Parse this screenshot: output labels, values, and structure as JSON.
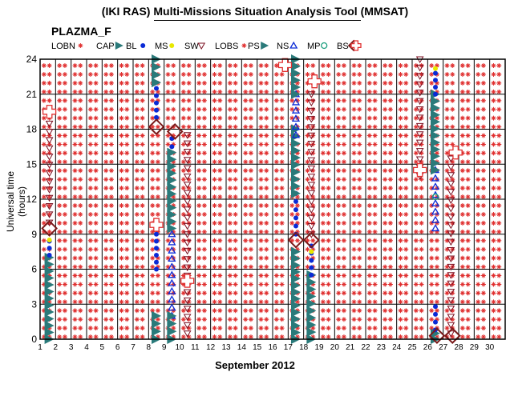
{
  "title": "(IKI RAS) Multi-Missions Situation Analysis Tool (MMSAT)",
  "chart_data": {
    "type": "scatter",
    "subtitle": "PLAZMA_F",
    "xlabel": "September 2012",
    "ylabel": "Universal time (hours)",
    "xlim": [
      1,
      31
    ],
    "ylim": [
      0,
      24
    ],
    "x_ticks": [
      1,
      2,
      3,
      4,
      5,
      6,
      7,
      8,
      9,
      10,
      11,
      12,
      13,
      14,
      15,
      16,
      17,
      18,
      19,
      20,
      21,
      22,
      23,
      24,
      25,
      26,
      27,
      28,
      29,
      30
    ],
    "y_ticks": [
      0,
      3,
      6,
      9,
      12,
      15,
      18,
      21,
      24
    ],
    "grid": true,
    "legend_position": "top",
    "regions": [
      {
        "name": "LOBN",
        "color": "#e03030",
        "marker": "asterisk"
      },
      {
        "name": "CAP",
        "color": "#2a7a7a",
        "marker": "triangle-right"
      },
      {
        "name": "BL",
        "color": "#0a2ad6",
        "marker": "dot"
      },
      {
        "name": "MS",
        "color": "#e8e800",
        "marker": "dot"
      },
      {
        "name": "SW",
        "color": "#7a0f20",
        "marker": "triangle-down-open"
      },
      {
        "name": "LOBS",
        "color": "#e03030",
        "marker": "asterisk"
      },
      {
        "name": "PS",
        "color": "#2a7a7a",
        "marker": "triangle-right"
      },
      {
        "name": "NS",
        "color": "#0a2ad6",
        "marker": "triangle-up-open"
      },
      {
        "name": "MP",
        "color": "#1a9e7e",
        "marker": "circle-open"
      },
      {
        "name": "BS",
        "color": "#7a1a1a",
        "marker": "diamond-open"
      },
      {
        "name": "",
        "color": "#e03030",
        "marker": "cross-open"
      }
    ],
    "segments": [
      {
        "region": "CAP",
        "x": 1.6,
        "y_start": 0,
        "y_end": 7
      },
      {
        "region": "BL",
        "x": 1.6,
        "y_start": 7.2,
        "y_end": 8.4
      },
      {
        "region": "MS",
        "x": 1.6,
        "y_start": 8.5,
        "y_end": 8.7
      },
      {
        "region": "SW",
        "x": 1.6,
        "y_start": 10,
        "y_end": 19.2
      },
      {
        "region": "CAP",
        "x": 8.5,
        "y_start": 0,
        "y_end": 2
      },
      {
        "region": "BL",
        "x": 8.5,
        "y_start": 6,
        "y_end": 9
      },
      {
        "region": "BL",
        "x": 8.5,
        "y_start": 19,
        "y_end": 21.5
      },
      {
        "region": "CAP",
        "x": 8.5,
        "y_start": 22,
        "y_end": 24
      },
      {
        "region": "NS",
        "x": 9.5,
        "y_start": 2,
        "y_end": 9
      },
      {
        "region": "CAP",
        "x": 9.5,
        "y_start": 0,
        "y_end": 2
      },
      {
        "region": "CAP",
        "x": 9.5,
        "y_start": 9.5,
        "y_end": 16
      },
      {
        "region": "BL",
        "x": 9.5,
        "y_start": 16.5,
        "y_end": 17.2
      },
      {
        "region": "SW",
        "x": 10.5,
        "y_start": 0.5,
        "y_end": 17.5
      },
      {
        "region": "CAP",
        "x": 17.5,
        "y_start": 0,
        "y_end": 7.5
      },
      {
        "region": "BL",
        "x": 17.5,
        "y_start": 9,
        "y_end": 12.5
      },
      {
        "region": "CAP",
        "x": 17.5,
        "y_start": 12.5,
        "y_end": 18
      },
      {
        "region": "NS",
        "x": 17.5,
        "y_start": 17.5,
        "y_end": 21
      },
      {
        "region": "CAP",
        "x": 17.5,
        "y_start": 21,
        "y_end": 24
      },
      {
        "region": "CAP",
        "x": 18.5,
        "y_start": 0,
        "y_end": 5.5
      },
      {
        "region": "BL",
        "x": 18.5,
        "y_start": 5.5,
        "y_end": 8
      },
      {
        "region": "MS",
        "x": 18.5,
        "y_start": 7.5,
        "y_end": 7.8
      },
      {
        "region": "SW",
        "x": 18.5,
        "y_start": 9,
        "y_end": 21
      },
      {
        "region": "SW",
        "x": 25.5,
        "y_start": 14,
        "y_end": 24
      },
      {
        "region": "CAP",
        "x": 26.5,
        "y_start": 0,
        "y_end": 0.5
      },
      {
        "region": "BL",
        "x": 26.5,
        "y_start": 0.8,
        "y_end": 2.8
      },
      {
        "region": "NS",
        "x": 26.5,
        "y_start": 9.5,
        "y_end": 14.5
      },
      {
        "region": "MP",
        "x": 26.5,
        "y_start": 12.2,
        "y_end": 12.2
      },
      {
        "region": "CAP",
        "x": 26.5,
        "y_start": 14.5,
        "y_end": 21
      },
      {
        "region": "BL",
        "x": 26.5,
        "y_start": 21,
        "y_end": 22.8
      },
      {
        "region": "MS",
        "x": 26.5,
        "y_start": 23.2,
        "y_end": 23.4
      },
      {
        "region": "SW",
        "x": 27.5,
        "y_start": 0.5,
        "y_end": 15.5
      }
    ],
    "boundaries": [
      {
        "type": "BS",
        "x": 1.6,
        "y": 9.5
      },
      {
        "type": "cross",
        "x": 1.6,
        "y": 19.5
      },
      {
        "type": "BS",
        "x": 8.5,
        "y": 18.2
      },
      {
        "type": "cross",
        "x": 8.5,
        "y": 9.8
      },
      {
        "type": "BS",
        "x": 9.7,
        "y": 17.8
      },
      {
        "type": "cross",
        "x": 10.5,
        "y": 5
      },
      {
        "type": "cross",
        "x": 16.8,
        "y": 23.5
      },
      {
        "type": "BS",
        "x": 17.5,
        "y": 8.5
      },
      {
        "type": "BS",
        "x": 18.5,
        "y": 8.5
      },
      {
        "type": "cross",
        "x": 18.7,
        "y": 22.1
      },
      {
        "type": "cross",
        "x": 25.5,
        "y": 14.5
      },
      {
        "type": "BS",
        "x": 26.6,
        "y": 0.3
      },
      {
        "type": "BS",
        "x": 27.6,
        "y": 0.3
      },
      {
        "type": "cross",
        "x": 27.8,
        "y": 16
      }
    ]
  }
}
